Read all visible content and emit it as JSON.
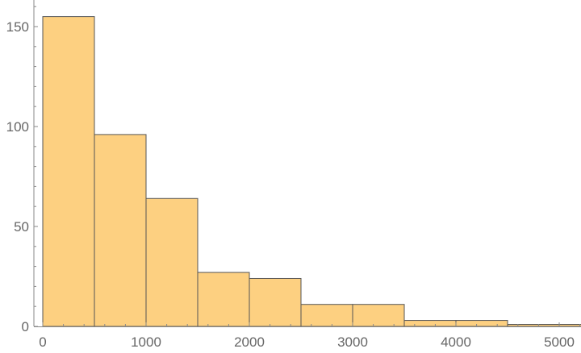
{
  "chart_data": {
    "type": "bar",
    "subtype": "histogram",
    "bin_edges": [
      0,
      500,
      1000,
      1500,
      2000,
      2500,
      3000,
      3500,
      4000,
      4500,
      5000,
      5500
    ],
    "values": [
      155,
      96,
      64,
      27,
      24,
      11,
      11,
      3,
      3,
      1,
      1
    ],
    "title": "",
    "xlabel": "",
    "ylabel": "",
    "xlim": [
      -90,
      5200
    ],
    "ylim": [
      0,
      163
    ],
    "x_ticks": [
      "0",
      "1000",
      "2000",
      "3000",
      "4000",
      "5000"
    ],
    "y_ticks": [
      "0",
      "50",
      "100",
      "150"
    ],
    "grid": false,
    "bar_color": "#FDD081",
    "edge_color": "#555555"
  }
}
